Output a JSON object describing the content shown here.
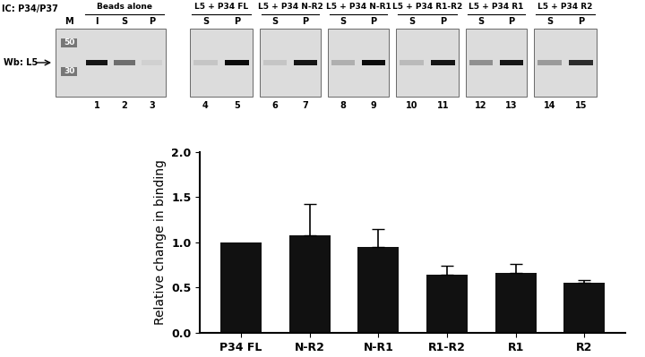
{
  "chart_data": {
    "type": "bar",
    "categories": [
      "P34 FL",
      "N-R2",
      "N-R1",
      "R1-R2",
      "R1",
      "R2"
    ],
    "values": [
      1.0,
      1.08,
      0.95,
      0.64,
      0.66,
      0.55
    ],
    "errors": [
      null,
      0.35,
      0.2,
      0.1,
      0.1,
      0.03
    ],
    "color": "#111111",
    "y_label": "Relative change in binding",
    "ylim": [
      0,
      2.0
    ],
    "yticks": [
      {
        "value": 0,
        "label": "0.0"
      },
      {
        "value": 0.5,
        "label": "0.5"
      },
      {
        "value": 1.0,
        "label": "1.0"
      },
      {
        "value": 1.5,
        "label": "1.5"
      },
      {
        "value": 2.0,
        "label": "2.0"
      }
    ],
    "grid": false
  },
  "blot": {
    "ic_label": "IC: P34/P37",
    "wb_label": "Wb: L5",
    "marker": {
      "label": "M",
      "sizes": [
        50,
        30
      ]
    },
    "groups": [
      {
        "title": "Beads alone",
        "lanes": [
          "I",
          "S",
          "P"
        ]
      },
      {
        "title": "L5 + P34 FL",
        "lanes": [
          "S",
          "P"
        ]
      },
      {
        "title": "L5 + P34 N-R2",
        "lanes": [
          "S",
          "P"
        ]
      },
      {
        "title": "L5 + P34 N-R1",
        "lanes": [
          "S",
          "P"
        ]
      },
      {
        "title": "L5 + P34 R1-R2",
        "lanes": [
          "S",
          "P"
        ]
      },
      {
        "title": "L5 + P34 R1",
        "lanes": [
          "S",
          "P"
        ]
      },
      {
        "title": "L5 + P34 R2",
        "lanes": [
          "S",
          "P"
        ]
      }
    ],
    "lane_numbers": [
      1,
      2,
      3,
      4,
      5,
      6,
      7,
      8,
      9,
      10,
      11,
      12,
      13,
      14,
      15
    ],
    "band_intensity": [
      0.9,
      0.5,
      0.05,
      0.1,
      0.95,
      0.1,
      0.9,
      0.2,
      0.95,
      0.15,
      0.9,
      0.35,
      0.9,
      0.3,
      0.8
    ]
  }
}
